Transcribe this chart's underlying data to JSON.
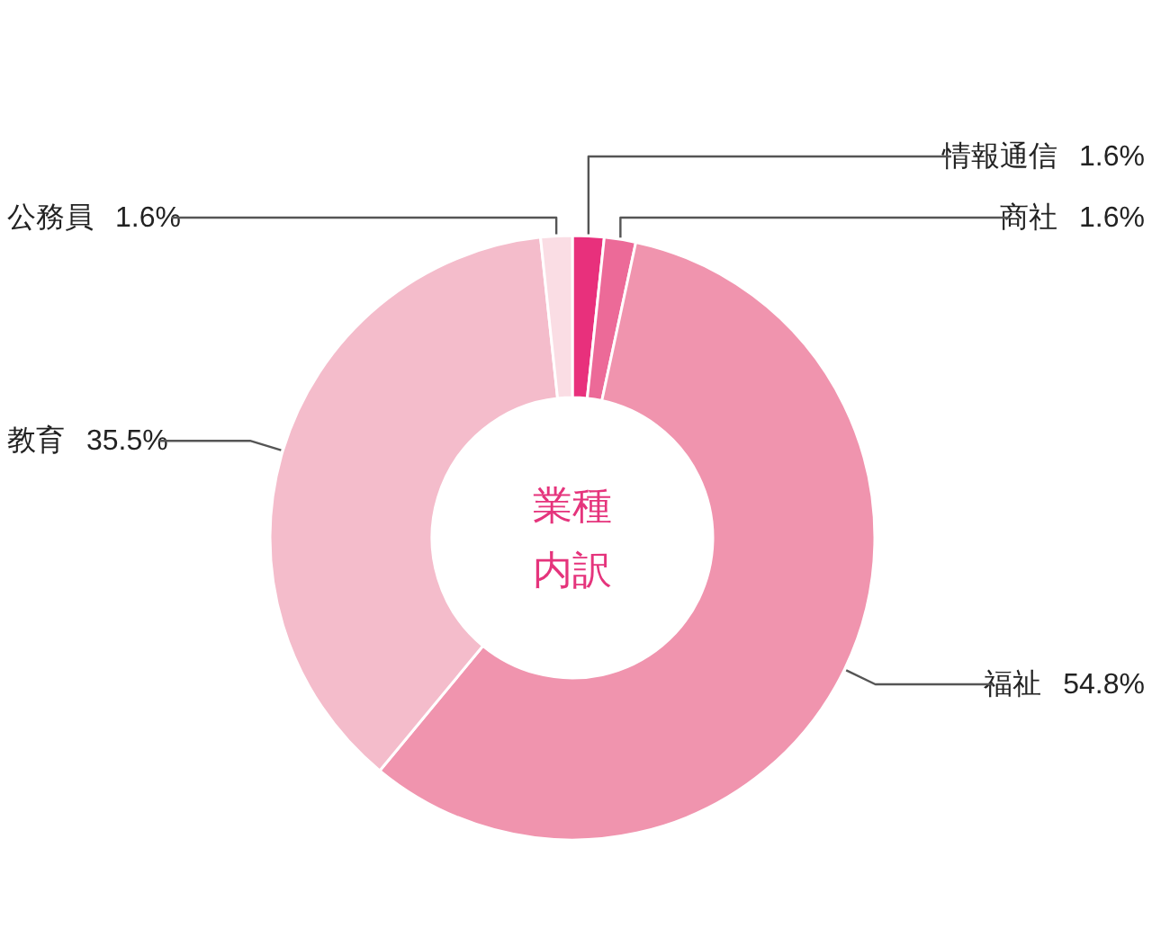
{
  "chart_data": {
    "type": "donut",
    "title": "業種内訳",
    "categories": [
      "情報通信",
      "商社",
      "福祉",
      "教育",
      "公務員"
    ],
    "values": [
      1.6,
      1.6,
      54.8,
      35.5,
      1.6
    ],
    "value_labels": [
      "1.6%",
      "1.6%",
      "54.8%",
      "35.5%",
      "1.6%"
    ],
    "colors": [
      "#e8307c",
      "#ec6a98",
      "#f094ae",
      "#f4bccb",
      "#fadde4"
    ]
  }
}
